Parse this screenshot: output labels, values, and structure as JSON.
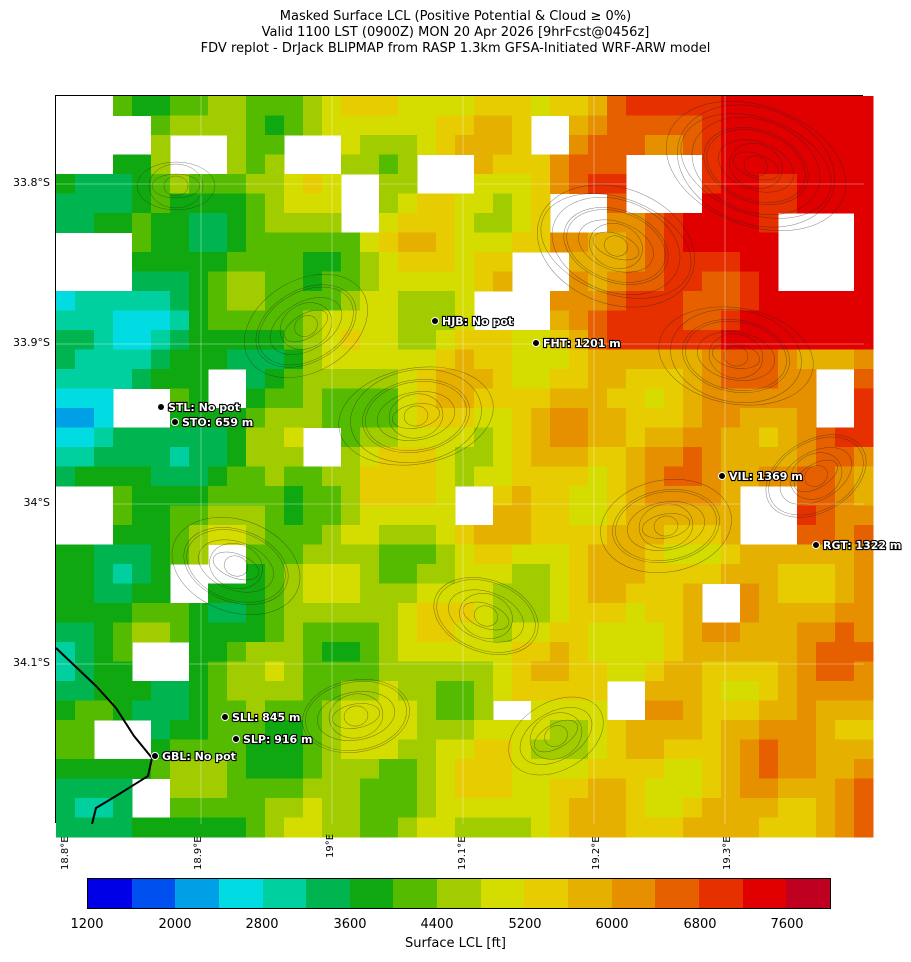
{
  "title": {
    "line1": "Masked Surface LCL (Positive Potential & Cloud ≥ 0%)",
    "line2": "Valid 1100 LST (0900Z) MON 20 Apr 2026 [9hrFcst@0456z]",
    "line3": "FDV replot - DrJack BLIPMAP from RASP 1.3km GFSA-Initiated WRF-ARW model"
  },
  "axes": {
    "lat_ticks": [
      "33.8°S",
      "33.9°S",
      "34°S",
      "34.1°S"
    ],
    "lon_ticks": [
      "18.8°E",
      "18.9°E",
      "19°E",
      "19.1°E",
      "19.2°E",
      "19.3°E"
    ]
  },
  "stations": [
    {
      "id": "HJB",
      "label": "HJB: No pot"
    },
    {
      "id": "FHT",
      "label": "FHT: 1201 m"
    },
    {
      "id": "STL",
      "label": "STL: No pot"
    },
    {
      "id": "STO",
      "label": "STO: 659 m"
    },
    {
      "id": "VIL",
      "label": "VIL: 1369 m"
    },
    {
      "id": "RGT",
      "label": "RGT: 1322 m"
    },
    {
      "id": "SLL",
      "label": "SLL: 845 m"
    },
    {
      "id": "SLP",
      "label": "SLP: 916 m"
    },
    {
      "id": "GBL",
      "label": "GBL: No pot"
    }
  ],
  "colorbar": {
    "label": "Surface LCL [ft]",
    "tick_labels": [
      "1200",
      "2000",
      "2800",
      "3600",
      "4400",
      "5200",
      "6000",
      "6800",
      "7600"
    ],
    "colors": [
      "#0000e6",
      "#0050f0",
      "#00a0e6",
      "#00dce1",
      "#00cfa0",
      "#00b550",
      "#10a810",
      "#55bb00",
      "#a0cc00",
      "#d4dc00",
      "#e6cc00",
      "#e6b000",
      "#e69000",
      "#e66000",
      "#e63000",
      "#e00000",
      "#c00020"
    ],
    "range": [
      1200,
      8000
    ]
  }
}
